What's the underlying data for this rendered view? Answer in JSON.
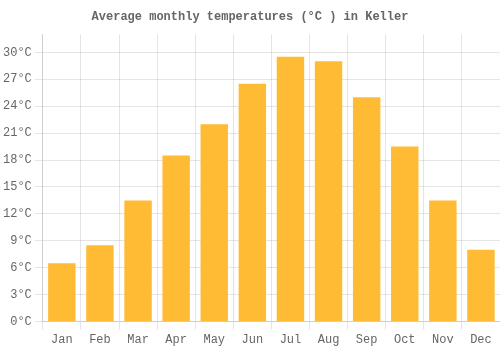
{
  "chart_data": {
    "type": "bar",
    "title": "Average monthly temperatures (°C ) in Keller",
    "categories": [
      "Jan",
      "Feb",
      "Mar",
      "Apr",
      "May",
      "Jun",
      "Jul",
      "Aug",
      "Sep",
      "Oct",
      "Nov",
      "Dec"
    ],
    "values": [
      6.5,
      8.5,
      13.5,
      18.5,
      22.0,
      26.5,
      29.5,
      29.0,
      25.0,
      19.5,
      13.5,
      8.0
    ],
    "color": "#FFBB33",
    "ylim": [
      0,
      32
    ],
    "yticks": [
      {
        "value": 0,
        "label": "0°C"
      },
      {
        "value": 3,
        "label": "3°C"
      },
      {
        "value": 6,
        "label": "6°C"
      },
      {
        "value": 9,
        "label": "9°C"
      },
      {
        "value": 12,
        "label": "12°C"
      },
      {
        "value": 15,
        "label": "15°C"
      },
      {
        "value": 18,
        "label": "18°C"
      },
      {
        "value": 21,
        "label": "21°C"
      },
      {
        "value": 24,
        "label": "24°C"
      },
      {
        "value": 27,
        "label": "27°C"
      },
      {
        "value": 30,
        "label": "30°C"
      }
    ],
    "grid": true
  }
}
